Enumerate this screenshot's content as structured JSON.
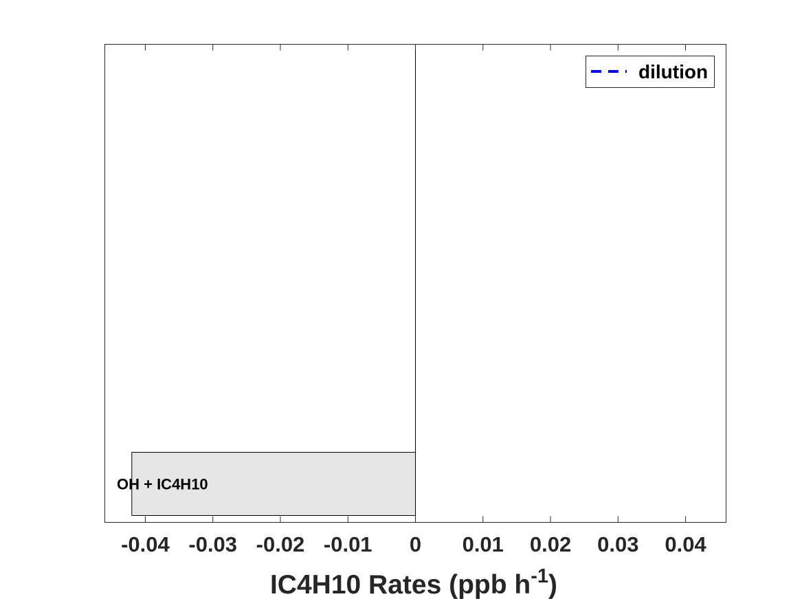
{
  "chart_data": {
    "type": "bar",
    "orientation": "horizontal",
    "categories": [
      "OH + IC4H10"
    ],
    "series": [
      {
        "values": [
          -0.042
        ],
        "color": "#e6e6e6"
      }
    ],
    "xlabel_main": "IC4H10 Rates (ppb h",
    "xlabel_sup": "-1",
    "xlabel_close": ")",
    "xlim": [
      -0.046,
      0.046
    ],
    "xticks": [
      -0.04,
      -0.03,
      -0.02,
      -0.01,
      0,
      0.01,
      0.02,
      0.03,
      0.04
    ],
    "xtick_labels": [
      "-0.04",
      "-0.03",
      "-0.02",
      "-0.01",
      "0",
      "0.01",
      "0.02",
      "0.03",
      "0.04"
    ],
    "grid": false,
    "legend": {
      "position": "top-right",
      "entries": [
        {
          "label": "dilution",
          "color": "#0000ff",
          "style": "dashed"
        }
      ]
    }
  }
}
